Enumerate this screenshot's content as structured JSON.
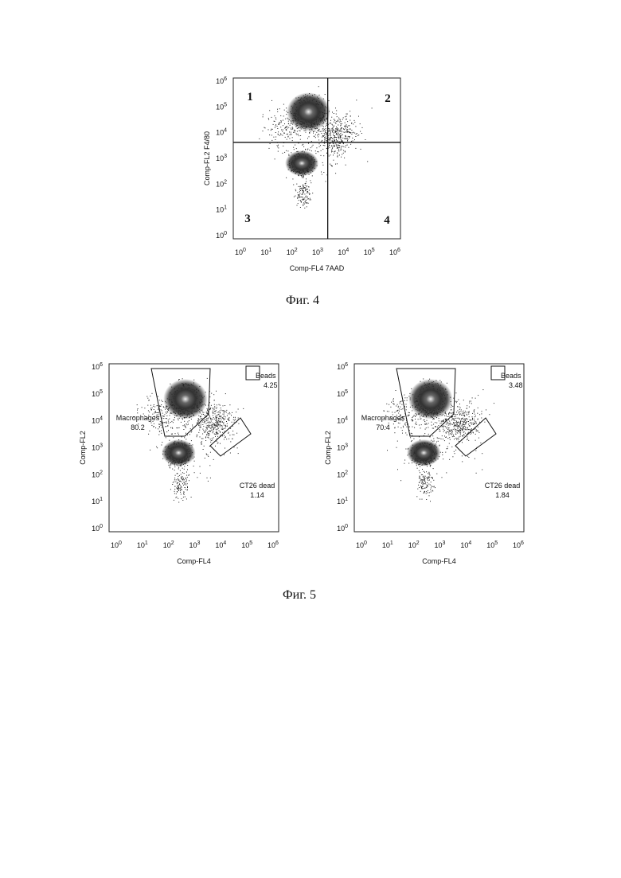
{
  "figure4": {
    "quadrants": [
      "1",
      "2",
      "3",
      "4"
    ],
    "y_axis_label": "Comp-FL2  F4/80",
    "x_axis_label": "Comp-FL4  7AAD",
    "tick_base": "10",
    "tick_exponents": [
      "0",
      "1",
      "2",
      "3",
      "4",
      "5",
      "6"
    ],
    "caption": "Фиг. 4"
  },
  "figure5": {
    "tick_base": "10",
    "tick_exponents": [
      "0",
      "1",
      "2",
      "3",
      "4",
      "5",
      "6"
    ],
    "caption": "Фиг. 5",
    "plots": [
      {
        "y_axis_label": "Comp-FL2",
        "x_axis_label": "Comp-FL4",
        "gates": [
          {
            "name": "Beads",
            "value": 4.25
          },
          {
            "name": "Macrophages",
            "value": 80.2
          },
          {
            "name": "CT26 dead",
            "value": 1.14
          }
        ]
      },
      {
        "y_axis_label": "Comp-FL2",
        "x_axis_label": "Comp-FL4",
        "gates": [
          {
            "name": "Beads",
            "value": 3.48
          },
          {
            "name": "Macrophages",
            "value": 70.4
          },
          {
            "name": "CT26 dead",
            "value": 1.84
          }
        ]
      }
    ]
  }
}
